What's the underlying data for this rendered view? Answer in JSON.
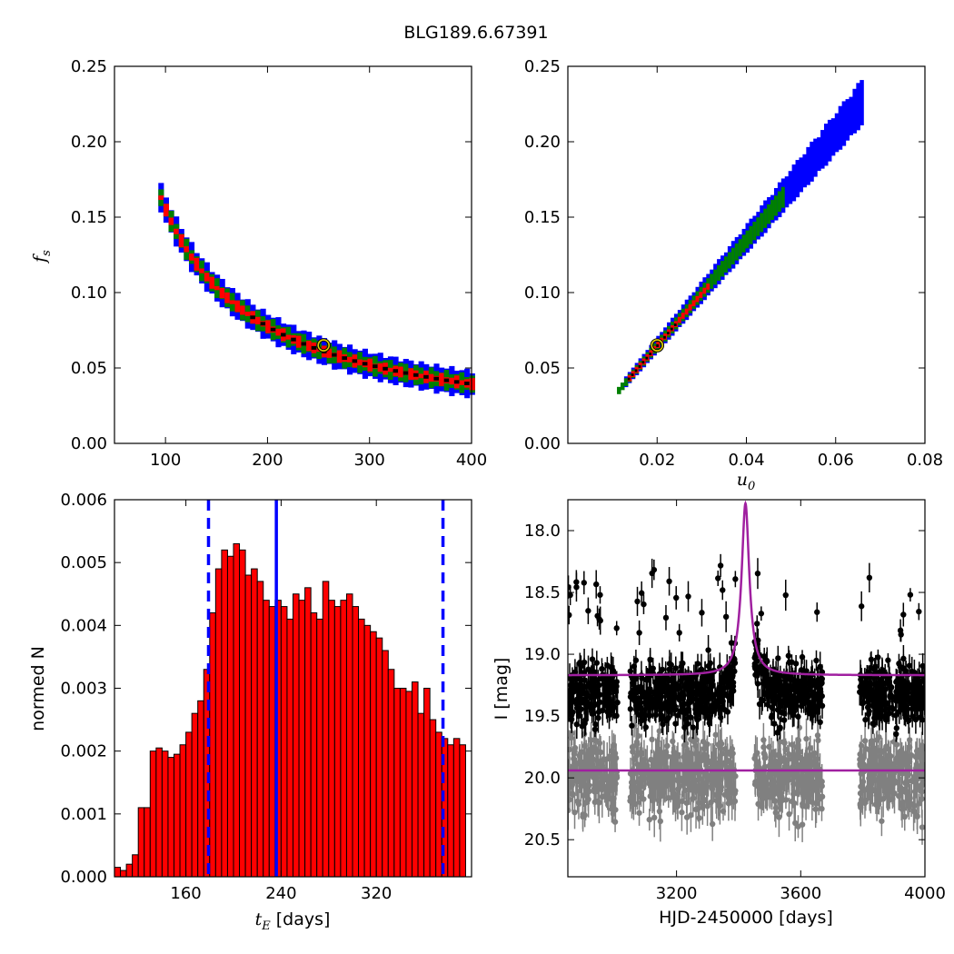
{
  "figure": {
    "title": "BLG189.6.67391"
  },
  "chart_data": [
    {
      "type": "heatmap",
      "panel": "top-left",
      "xlim": [
        50,
        400
      ],
      "ylim": [
        0.0,
        0.25
      ],
      "xticks": [
        "100",
        "200",
        "300",
        "400"
      ],
      "yticks": [
        "0.00",
        "0.05",
        "0.10",
        "0.15",
        "0.20",
        "0.25"
      ],
      "xlabel": "",
      "ylabel": "f",
      "ylabel_sub": "s",
      "relation_curve": {
        "a": 15.0,
        "b": 0.0016,
        "x_range": [
          93,
          400
        ]
      },
      "confidence_colors": {
        "outer": "#0000ff",
        "middle": "#007f00",
        "inner": "#ff0000",
        "best": "#000000"
      },
      "band_halfwidths": {
        "outer": 0.0085,
        "middle": 0.0055,
        "inner": 0.0028
      },
      "best_fit": {
        "x": 255,
        "y": 0.065
      }
    },
    {
      "type": "heatmap",
      "panel": "top-right",
      "xlim": [
        0.0,
        0.08
      ],
      "ylim": [
        0.0,
        0.25
      ],
      "xticks": [
        "0.02",
        "0.04",
        "0.06",
        "0.08"
      ],
      "yticks": [
        "0.00",
        "0.05",
        "0.10",
        "0.15",
        "0.20",
        "0.25"
      ],
      "xlabel": "u",
      "xlabel_sub": "0",
      "ylabel": "",
      "relation_curve": {
        "slope": 3.45,
        "intercept": -0.0035,
        "x_range": [
          0.011,
          0.066
        ]
      },
      "best_fit": {
        "x": 0.02,
        "y": 0.065
      }
    },
    {
      "type": "bar",
      "panel": "bottom-left",
      "xlim": [
        100,
        400
      ],
      "ylim": [
        0.0,
        0.006
      ],
      "xticks": [
        "160",
        "240",
        "320"
      ],
      "yticks": [
        "0.000",
        "0.001",
        "0.002",
        "0.003",
        "0.004",
        "0.005",
        "0.006"
      ],
      "xlabel": "t",
      "xlabel_sub": "E",
      "xlabel_unit": " [days]",
      "ylabel": "normed N",
      "bin_start": 100,
      "bin_width": 5,
      "values": [
        0.00015,
        0.0001,
        0.0002,
        0.00035,
        0.0011,
        0.0011,
        0.002,
        0.00205,
        0.002,
        0.0019,
        0.00195,
        0.0021,
        0.0023,
        0.0026,
        0.0028,
        0.0033,
        0.0042,
        0.0049,
        0.0052,
        0.0051,
        0.0053,
        0.0052,
        0.0048,
        0.0049,
        0.0047,
        0.0044,
        0.0043,
        0.0044,
        0.0043,
        0.0041,
        0.0045,
        0.0044,
        0.0046,
        0.0042,
        0.0041,
        0.0047,
        0.0044,
        0.0043,
        0.0044,
        0.0045,
        0.0043,
        0.0041,
        0.004,
        0.0039,
        0.0038,
        0.0036,
        0.0033,
        0.003,
        0.003,
        0.00295,
        0.0031,
        0.0026,
        0.003,
        0.0025,
        0.0023,
        0.0022,
        0.0021,
        0.0022,
        0.0021
      ],
      "bar_color": "#ff0000",
      "median": 236,
      "interval": [
        179,
        376
      ]
    },
    {
      "type": "scatter",
      "panel": "bottom-right",
      "xlim": [
        2850,
        4000
      ],
      "ylim": [
        20.8,
        17.75
      ],
      "xticks": [
        "3200",
        "3600",
        "4000"
      ],
      "yticks": [
        "18.0",
        "18.5",
        "19.0",
        "19.5",
        "20.0",
        "20.5"
      ],
      "xlabel": "HJD-2450000 [days]",
      "ylabel": "I [mag]",
      "seasons": [
        [
          2850,
          3010
        ],
        [
          3050,
          3390
        ],
        [
          3450,
          3670
        ],
        [
          3790,
          4000
        ]
      ],
      "series": [
        {
          "color": "#000000",
          "baseline": 19.32,
          "scatter": 0.16,
          "err": 0.09
        },
        {
          "color": "#808080",
          "baseline": 19.98,
          "scatter": 0.2,
          "err": 0.12
        }
      ],
      "model": {
        "color": "#a020a0",
        "t0": 3422,
        "baseline_mag": 19.17,
        "peak_mag": 17.78,
        "flat_mag": 19.94
      }
    }
  ]
}
